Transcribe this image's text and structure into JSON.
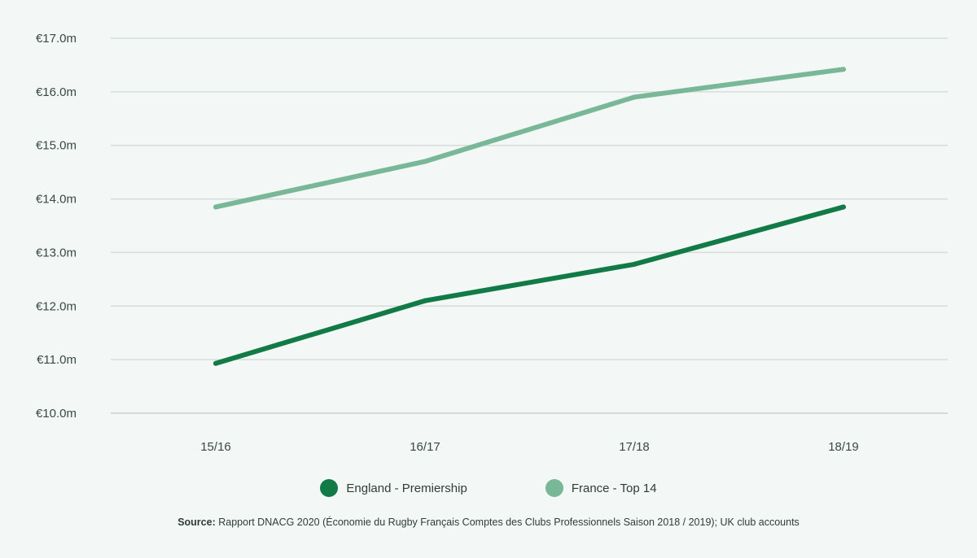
{
  "chart_data": {
    "type": "line",
    "x": [
      "15/16",
      "16/17",
      "17/18",
      "18/19"
    ],
    "y_ticks": [
      "€10.0m",
      "€11.0m",
      "€12.0m",
      "€13.0m",
      "€14.0m",
      "€15.0m",
      "€16.0m",
      "€17.0m"
    ],
    "ylim": [
      10.0,
      17.0
    ],
    "grid": true,
    "legend_position": "bottom",
    "series": [
      {
        "name": "England - Premiership",
        "color": "#117a46",
        "values": [
          10.93,
          12.1,
          12.78,
          13.85
        ]
      },
      {
        "name": "France - Top 14",
        "color": "#78b899",
        "values": [
          13.85,
          14.7,
          15.9,
          16.42
        ]
      }
    ],
    "title": "",
    "xlabel": "",
    "ylabel": ""
  },
  "source": {
    "label": "Source:",
    "text": "Rapport DNACG 2020 (Économie du Rugby Français Comptes des Clubs Professionnels Saison 2018 / 2019); UK club accounts"
  }
}
